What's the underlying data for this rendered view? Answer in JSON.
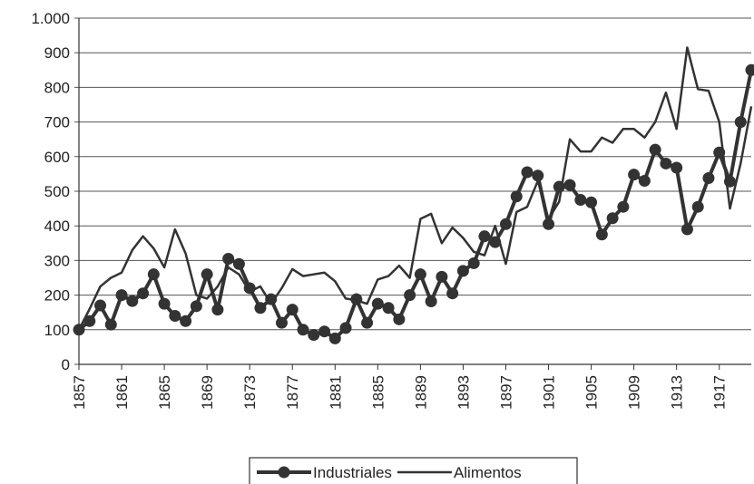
{
  "chart_data": {
    "type": "line",
    "x": [
      1857,
      1858,
      1859,
      1860,
      1861,
      1862,
      1863,
      1864,
      1865,
      1866,
      1867,
      1868,
      1869,
      1870,
      1871,
      1872,
      1873,
      1874,
      1875,
      1876,
      1877,
      1878,
      1879,
      1880,
      1881,
      1882,
      1883,
      1884,
      1885,
      1886,
      1887,
      1888,
      1889,
      1890,
      1891,
      1892,
      1893,
      1894,
      1895,
      1896,
      1897,
      1898,
      1899,
      1900,
      1901,
      1902,
      1903,
      1904,
      1905,
      1906,
      1907,
      1908,
      1909,
      1910,
      1911,
      1912,
      1913,
      1914,
      1915,
      1916,
      1917,
      1918,
      1919,
      1920
    ],
    "series": [
      {
        "name": "Industriales",
        "color": "#333333",
        "marker": true,
        "values": [
          100,
          125,
          170,
          115,
          200,
          183,
          205,
          260,
          175,
          140,
          125,
          168,
          260,
          158,
          305,
          290,
          220,
          163,
          188,
          120,
          158,
          100,
          85,
          95,
          75,
          105,
          188,
          120,
          175,
          163,
          130,
          200,
          260,
          182,
          253,
          205,
          270,
          292,
          370,
          353,
          405,
          485,
          555,
          545,
          405,
          513,
          518,
          475,
          468,
          375,
          422,
          455,
          548,
          530,
          620,
          580,
          568,
          390,
          455,
          538,
          612,
          528,
          700,
          850
        ]
      },
      {
        "name": "Alimentos",
        "color": "#333333",
        "marker": false,
        "values": [
          100,
          160,
          225,
          250,
          265,
          330,
          370,
          335,
          280,
          390,
          320,
          200,
          190,
          225,
          280,
          260,
          210,
          225,
          175,
          220,
          275,
          255,
          260,
          265,
          240,
          190,
          185,
          175,
          245,
          255,
          285,
          250,
          420,
          435,
          350,
          395,
          365,
          325,
          315,
          400,
          290,
          440,
          455,
          530,
          420,
          470,
          650,
          615,
          615,
          655,
          640,
          680,
          680,
          655,
          700,
          785,
          680,
          915,
          795,
          790,
          700,
          450,
          580,
          745
        ]
      }
    ],
    "xlim": [
      1857,
      1920
    ],
    "xticks": [
      1857,
      1861,
      1865,
      1869,
      1873,
      1877,
      1881,
      1885,
      1889,
      1893,
      1897,
      1901,
      1905,
      1909,
      1913,
      1917
    ],
    "ylim": [
      0,
      1000
    ],
    "yticks": [
      0,
      100,
      200,
      300,
      400,
      500,
      600,
      700,
      800,
      900,
      {
        "value": 1000,
        "label": "1.000"
      }
    ],
    "grid": true,
    "legend": "bottom"
  }
}
